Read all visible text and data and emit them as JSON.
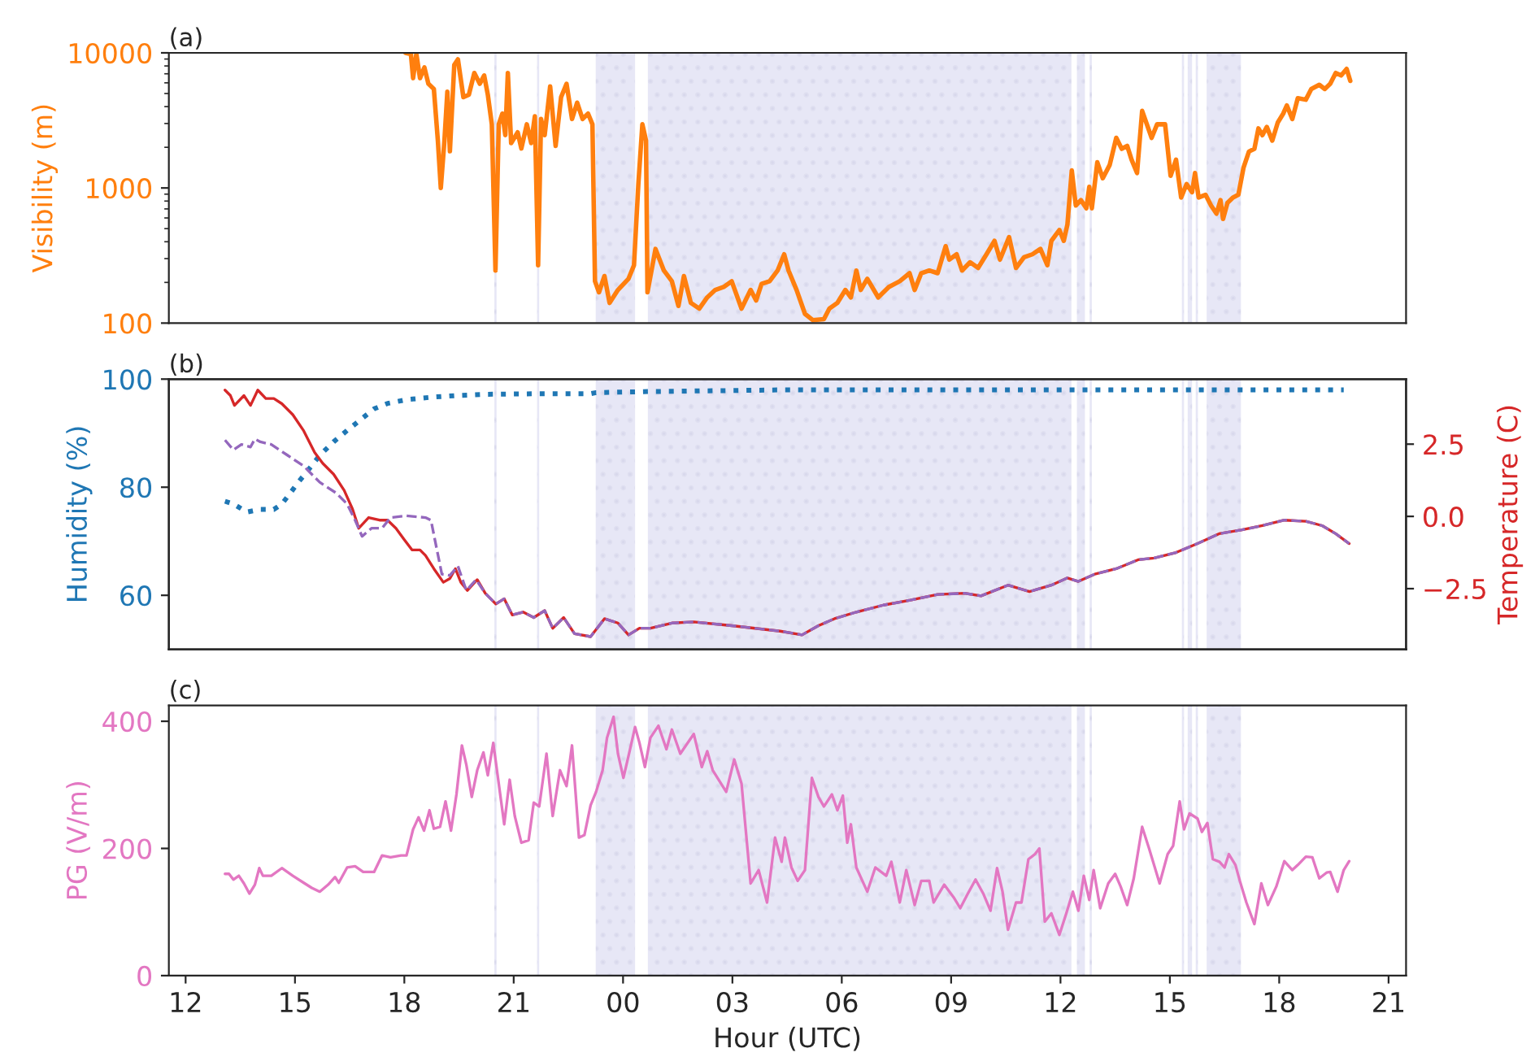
{
  "chart_data": [
    {
      "type": "line",
      "title": "(a)",
      "ylabel": "Visibility (m)",
      "log": "y",
      "ylim": [
        100,
        10000
      ],
      "yticks": [
        100,
        1000,
        10000
      ],
      "xlim": [
        11.54,
        45.48
      ],
      "tick_labels": "y",
      "grid": false,
      "legend": false,
      "bands": [
        {
          "axis": "x",
          "from": 20.47,
          "to": 20.53,
          "color": "#d4d4ee"
        },
        {
          "axis": "x",
          "from": 21.64,
          "to": 21.7,
          "color": "#d4d4ee"
        },
        {
          "axis": "x",
          "from": 23.25,
          "to": 24.33,
          "color": "#d4d4ee"
        },
        {
          "axis": "x",
          "from": 24.68,
          "to": 36.3,
          "color": "#d4d4ee"
        },
        {
          "axis": "x",
          "from": 36.45,
          "to": 36.67,
          "color": "#d4d4ee"
        },
        {
          "axis": "x",
          "from": 36.8,
          "to": 36.86,
          "color": "#d4d4ee"
        },
        {
          "axis": "x",
          "from": 39.33,
          "to": 39.39,
          "color": "#d4d4ee"
        },
        {
          "axis": "x",
          "from": 39.49,
          "to": 39.61,
          "color": "#d4d4ee"
        },
        {
          "axis": "x",
          "from": 39.71,
          "to": 39.77,
          "color": "#d4d4ee"
        },
        {
          "axis": "x",
          "from": 40.01,
          "to": 40.95,
          "color": "#d4d4ee"
        }
      ],
      "series": [
        {
          "color": "#ff7f0e",
          "line_style": "solid",
          "marker": "none",
          "x": [
            18.03,
            18.18,
            18.24,
            18.33,
            18.43,
            18.55,
            18.66,
            18.81,
            18.92,
            19.0,
            19.1,
            19.18,
            19.25,
            19.37,
            19.47,
            19.62,
            19.77,
            19.92,
            20.07,
            20.19,
            20.29,
            20.4,
            20.5,
            20.59,
            20.69,
            20.77,
            20.84,
            20.93,
            21.11,
            21.21,
            21.36,
            21.48,
            21.58,
            21.67,
            21.75,
            21.85,
            22.0,
            22.15,
            22.3,
            22.45,
            22.6,
            22.74,
            22.89,
            23.04,
            23.16,
            23.23,
            23.34,
            23.49,
            23.63,
            23.86,
            24.15,
            24.3,
            24.42,
            24.53,
            24.63,
            24.67,
            24.89,
            25.12,
            25.34,
            25.52,
            25.67,
            25.86,
            26.09,
            26.31,
            26.53,
            26.76,
            26.98,
            27.25,
            27.5,
            27.65,
            27.8,
            28.02,
            28.24,
            28.42,
            28.54,
            28.76,
            28.99,
            29.21,
            29.51,
            29.66,
            29.88,
            30.1,
            30.25,
            30.4,
            30.52,
            30.7,
            31.0,
            31.29,
            31.59,
            31.86,
            32.0,
            32.18,
            32.4,
            32.63,
            32.85,
            32.95,
            33.15,
            33.3,
            33.52,
            33.74,
            33.97,
            34.19,
            34.34,
            34.59,
            34.78,
            35.0,
            35.23,
            35.45,
            35.64,
            35.75,
            35.97,
            36.09,
            36.19,
            36.31,
            36.42,
            36.56,
            36.71,
            36.79,
            36.86,
            37.01,
            37.16,
            37.35,
            37.53,
            37.68,
            37.83,
            37.95,
            38.1,
            38.24,
            38.5,
            38.65,
            38.87,
            39.02,
            39.17,
            39.31,
            39.46,
            39.61,
            39.69,
            39.79,
            39.98,
            40.13,
            40.28,
            40.39,
            40.46,
            40.58,
            40.73,
            40.88,
            41.02,
            41.17,
            41.32,
            41.43,
            41.54,
            41.66,
            41.81,
            41.96,
            42.11,
            42.21,
            42.36,
            42.51,
            42.73,
            42.88,
            43.1,
            43.25,
            43.4,
            43.55,
            43.7,
            43.85,
            43.95
          ],
          "values": [
            10000,
            9800,
            6500,
            9800,
            6500,
            7800,
            5900,
            5400,
            2240,
            1000,
            2240,
            5150,
            1870,
            8160,
            8950,
            4700,
            4900,
            7100,
            5900,
            6800,
            4900,
            2960,
            245,
            2960,
            3550,
            2460,
            7100,
            2150,
            2580,
            1960,
            2960,
            2150,
            3390,
            268,
            3240,
            2460,
            5650,
            2050,
            4700,
            5900,
            3240,
            4280,
            3240,
            3550,
            2960,
            204,
            169,
            223,
            141,
            176,
            213,
            268,
            1070,
            2960,
            2240,
            169,
            354,
            245,
            204,
            134,
            223,
            141,
            128,
            155,
            176,
            185,
            204,
            128,
            176,
            147,
            195,
            204,
            245,
            323,
            245,
            176,
            117,
            105,
            107,
            128,
            141,
            176,
            155,
            245,
            176,
            213,
            155,
            185,
            204,
            234,
            176,
            234,
            245,
            234,
            371,
            295,
            323,
            245,
            282,
            256,
            323,
            406,
            295,
            433,
            256,
            307,
            323,
            354,
            268,
            406,
            489,
            406,
            536,
            1350,
            742,
            813,
            707,
            1020,
            707,
            1550,
            1180,
            1480,
            2350,
            1950,
            2050,
            1620,
            1290,
            3720,
            2350,
            2960,
            2960,
            1230,
            1620,
            850,
            1070,
            930,
            1290,
            850,
            890,
            742,
            645,
            813,
            590,
            775,
            850,
            890,
            1410,
            1860,
            1950,
            2760,
            2460,
            2830,
            2240,
            3050,
            3550,
            4080,
            3240,
            4620,
            4500,
            5400,
            5800,
            5400,
            5900,
            7100,
            6800,
            7600,
            6200
          ]
        }
      ]
    },
    {
      "type": "line",
      "title": "(b)",
      "ylabel": "Humidity (%)",
      "y2label": "Temperature (C)",
      "ylim": [
        50,
        100
      ],
      "yticks": [
        60,
        80,
        100
      ],
      "y2lim": [
        -4.6,
        4.75
      ],
      "y2ticks": [
        {
          "value": -2.5,
          "label": "−2.5"
        },
        {
          "value": 0,
          "label": "0.0"
        },
        {
          "value": 2.5,
          "label": "2.5"
        }
      ],
      "xlim": [
        11.54,
        45.48
      ],
      "tick_labels": "y",
      "grid": false,
      "legend": false,
      "bands": [
        {
          "axis": "x",
          "from": 20.47,
          "to": 20.53,
          "color": "#d4d4ee"
        },
        {
          "axis": "x",
          "from": 21.64,
          "to": 21.7,
          "color": "#d4d4ee"
        },
        {
          "axis": "x",
          "from": 23.25,
          "to": 24.33,
          "color": "#d4d4ee"
        },
        {
          "axis": "x",
          "from": 24.68,
          "to": 36.3,
          "color": "#d4d4ee"
        },
        {
          "axis": "x",
          "from": 36.45,
          "to": 36.67,
          "color": "#d4d4ee"
        },
        {
          "axis": "x",
          "from": 36.8,
          "to": 36.86,
          "color": "#d4d4ee"
        },
        {
          "axis": "x",
          "from": 39.33,
          "to": 39.39,
          "color": "#d4d4ee"
        },
        {
          "axis": "x",
          "from": 39.49,
          "to": 39.61,
          "color": "#d4d4ee"
        },
        {
          "axis": "x",
          "from": 39.71,
          "to": 39.77,
          "color": "#d4d4ee"
        },
        {
          "axis": "x",
          "from": 40.01,
          "to": 40.95,
          "color": "#d4d4ee"
        }
      ],
      "series": [
        {
          "color": "#1f77b4",
          "axis": "y",
          "line_style": "dotted",
          "marker": "none",
          "x": [
            13.08,
            13.31,
            13.68,
            14.05,
            14.42,
            14.64,
            14.87,
            15.09,
            15.39,
            15.68,
            16.06,
            16.43,
            16.8,
            17.17,
            17.54,
            18.06,
            18.81,
            19.55,
            20.29,
            21.78,
            23.11,
            23.26,
            24.75,
            28.3,
            43.77
          ],
          "values": [
            77.4,
            76.9,
            75.4,
            75.9,
            75.9,
            76.9,
            78.9,
            80.9,
            83.4,
            85.9,
            88.4,
            90.5,
            92.5,
            94.5,
            95.5,
            96.2,
            96.7,
            97.0,
            97.2,
            97.3,
            97.3,
            97.5,
            97.7,
            98.0,
            98.0
          ]
        },
        {
          "color": "#9467bd",
          "axis": "y2",
          "line_style": "dashed",
          "marker": "none",
          "x": [
            13.08,
            13.31,
            13.53,
            13.78,
            13.9,
            14.05,
            14.35,
            14.79,
            15.24,
            15.68,
            16.13,
            16.43,
            16.65,
            16.84,
            17.1,
            17.39,
            17.62,
            18.06,
            18.58,
            18.73,
            18.88,
            19.03,
            19.25,
            19.47,
            19.7,
            19.97,
            20.22,
            20.51,
            20.74,
            20.96,
            21.26,
            21.55,
            21.85,
            22.07,
            22.37,
            22.67,
            23.11,
            23.49,
            23.86,
            24.15,
            24.45,
            24.75,
            25.34,
            25.94,
            26.98,
            28.31,
            28.91,
            29.36,
            29.8,
            30.4,
            31.14,
            31.88,
            32.63,
            33.37,
            33.82,
            34.56,
            35.15,
            35.75,
            36.19,
            36.49,
            36.94,
            37.53,
            38.13,
            38.57,
            39.17,
            39.76,
            40.35,
            40.95,
            41.54,
            42.14,
            42.73,
            43.18,
            43.55,
            43.92
          ],
          "values": [
            2.64,
            2.3,
            2.49,
            2.4,
            2.68,
            2.58,
            2.49,
            2.12,
            1.74,
            1.18,
            0.81,
            0.43,
            -0.13,
            -0.69,
            -0.41,
            -0.41,
            -0.04,
            0.02,
            -0.04,
            -0.13,
            -1.07,
            -2.0,
            -2.04,
            -1.72,
            -2.56,
            -2.19,
            -2.66,
            -3.03,
            -2.85,
            -3.41,
            -3.31,
            -3.5,
            -3.26,
            -3.87,
            -3.5,
            -4.06,
            -4.16,
            -3.54,
            -3.69,
            -4.1,
            -3.87,
            -3.87,
            -3.69,
            -3.65,
            -3.78,
            -3.97,
            -4.1,
            -3.78,
            -3.54,
            -3.31,
            -3.07,
            -2.9,
            -2.7,
            -2.66,
            -2.75,
            -2.38,
            -2.6,
            -2.38,
            -2.13,
            -2.25,
            -2.0,
            -1.81,
            -1.5,
            -1.44,
            -1.25,
            -0.94,
            -0.6,
            -0.47,
            -0.32,
            -0.13,
            -0.17,
            -0.32,
            -0.6,
            -0.94
          ]
        },
        {
          "color": "#d62728",
          "axis": "y2",
          "line_style": "solid",
          "marker": "none",
          "x": [
            13.08,
            13.23,
            13.34,
            13.6,
            13.78,
            13.98,
            14.2,
            14.42,
            14.64,
            14.94,
            15.24,
            15.54,
            15.76,
            16.06,
            16.35,
            16.58,
            16.75,
            17.02,
            17.32,
            17.54,
            17.77,
            17.99,
            18.21,
            18.43,
            18.58,
            18.81,
            19.07,
            19.25,
            19.4,
            19.55,
            19.73,
            20.0,
            20.22,
            20.51,
            20.74,
            20.96,
            21.26,
            21.55,
            21.85,
            22.07,
            22.37,
            22.67,
            23.11,
            23.49,
            23.86,
            24.15,
            24.45,
            24.75,
            25.34,
            25.94,
            26.98,
            28.31,
            28.91,
            29.36,
            29.8,
            30.4,
            31.14,
            31.88,
            32.63,
            33.37,
            33.82,
            34.56,
            35.15,
            35.75,
            36.19,
            36.49,
            36.94,
            37.53,
            38.13,
            38.57,
            39.17,
            39.76,
            40.35,
            40.95,
            41.54,
            42.14,
            42.73,
            43.18,
            43.55,
            43.92
          ],
          "values": [
            4.37,
            4.18,
            3.84,
            4.18,
            3.84,
            4.37,
            4.08,
            4.08,
            3.9,
            3.52,
            2.96,
            2.21,
            1.84,
            1.46,
            0.9,
            0.25,
            -0.41,
            -0.04,
            -0.13,
            -0.13,
            -0.41,
            -0.79,
            -1.16,
            -1.16,
            -1.35,
            -1.81,
            -2.28,
            -2.15,
            -1.81,
            -2.28,
            -2.56,
            -2.19,
            -2.66,
            -3.03,
            -2.85,
            -3.41,
            -3.31,
            -3.5,
            -3.26,
            -3.87,
            -3.5,
            -4.06,
            -4.16,
            -3.54,
            -3.69,
            -4.1,
            -3.87,
            -3.87,
            -3.69,
            -3.65,
            -3.78,
            -3.97,
            -4.1,
            -3.78,
            -3.54,
            -3.31,
            -3.07,
            -2.9,
            -2.7,
            -2.66,
            -2.75,
            -2.38,
            -2.6,
            -2.38,
            -2.13,
            -2.25,
            -2.0,
            -1.81,
            -1.5,
            -1.44,
            -1.25,
            -0.94,
            -0.6,
            -0.47,
            -0.32,
            -0.13,
            -0.17,
            -0.32,
            -0.6,
            -0.94
          ]
        }
      ]
    },
    {
      "type": "line",
      "title": "(c)",
      "xlabel": "Hour (UTC)",
      "ylabel": "PG (V/m)",
      "ylim": [
        0,
        425
      ],
      "yticks": [
        0,
        200,
        400
      ],
      "xlim": [
        11.54,
        45.48
      ],
      "xticks": [
        {
          "value": 12,
          "label": "12"
        },
        {
          "value": 15,
          "label": "15"
        },
        {
          "value": 18,
          "label": "18"
        },
        {
          "value": 21,
          "label": "21"
        },
        {
          "value": 24,
          "label": "00"
        },
        {
          "value": 27,
          "label": "03"
        },
        {
          "value": 30,
          "label": "06"
        },
        {
          "value": 33,
          "label": "09"
        },
        {
          "value": 36,
          "label": "12"
        },
        {
          "value": 39,
          "label": "15"
        },
        {
          "value": 42,
          "label": "18"
        },
        {
          "value": 45,
          "label": "21"
        }
      ],
      "grid": false,
      "legend": false,
      "bands": [
        {
          "axis": "x",
          "from": 20.47,
          "to": 20.53,
          "color": "#d4d4ee"
        },
        {
          "axis": "x",
          "from": 21.64,
          "to": 21.7,
          "color": "#d4d4ee"
        },
        {
          "axis": "x",
          "from": 23.25,
          "to": 24.33,
          "color": "#d4d4ee"
        },
        {
          "axis": "x",
          "from": 24.68,
          "to": 36.3,
          "color": "#d4d4ee"
        },
        {
          "axis": "x",
          "from": 36.45,
          "to": 36.67,
          "color": "#d4d4ee"
        },
        {
          "axis": "x",
          "from": 36.8,
          "to": 36.86,
          "color": "#d4d4ee"
        },
        {
          "axis": "x",
          "from": 39.33,
          "to": 39.39,
          "color": "#d4d4ee"
        },
        {
          "axis": "x",
          "from": 39.49,
          "to": 39.61,
          "color": "#d4d4ee"
        },
        {
          "axis": "x",
          "from": 39.71,
          "to": 39.77,
          "color": "#d4d4ee"
        },
        {
          "axis": "x",
          "from": 40.01,
          "to": 40.95,
          "color": "#d4d4ee"
        }
      ],
      "series": [
        {
          "color": "#e377c2",
          "line_style": "solid",
          "marker": "none",
          "x": [
            13.08,
            13.19,
            13.31,
            13.46,
            13.6,
            13.75,
            13.9,
            14.02,
            14.12,
            14.35,
            14.64,
            14.94,
            15.24,
            15.46,
            15.68,
            15.91,
            16.1,
            16.2,
            16.43,
            16.65,
            16.87,
            17.17,
            17.39,
            17.62,
            17.91,
            18.06,
            18.24,
            18.39,
            18.54,
            18.69,
            18.81,
            18.98,
            19.13,
            19.28,
            19.43,
            19.58,
            19.7,
            19.85,
            20.0,
            20.17,
            20.29,
            20.44,
            20.59,
            20.74,
            20.89,
            21.03,
            21.21,
            21.41,
            21.55,
            21.7,
            21.9,
            22.07,
            22.27,
            22.45,
            22.6,
            22.79,
            22.94,
            23.11,
            23.26,
            23.44,
            23.56,
            23.74,
            23.86,
            24.01,
            24.18,
            24.33,
            24.45,
            24.6,
            24.75,
            24.97,
            25.19,
            25.34,
            25.57,
            25.94,
            26.16,
            26.31,
            26.46,
            26.83,
            27.05,
            27.25,
            27.5,
            27.72,
            27.95,
            28.17,
            28.35,
            28.44,
            28.62,
            28.79,
            28.99,
            29.18,
            29.36,
            29.51,
            29.73,
            29.88,
            30.03,
            30.15,
            30.25,
            30.4,
            30.7,
            30.92,
            31.22,
            31.36,
            31.59,
            31.77,
            32.0,
            32.18,
            32.4,
            32.52,
            32.81,
            33.07,
            33.25,
            33.45,
            33.67,
            33.89,
            34.08,
            34.26,
            34.41,
            34.56,
            34.78,
            34.93,
            35.12,
            35.3,
            35.42,
            35.57,
            35.75,
            35.97,
            36.16,
            36.34,
            36.49,
            36.64,
            36.79,
            36.91,
            37.09,
            37.31,
            37.5,
            37.65,
            37.83,
            38.01,
            38.24,
            38.43,
            38.72,
            38.94,
            39.09,
            39.27,
            39.39,
            39.54,
            39.76,
            39.88,
            40.03,
            40.18,
            40.36,
            40.5,
            40.62,
            40.8,
            40.92,
            41.1,
            41.32,
            41.51,
            41.69,
            41.92,
            42.14,
            42.36,
            42.51,
            42.73,
            42.91,
            43.1,
            43.3,
            43.4,
            43.6,
            43.77,
            43.92
          ],
          "values": [
            160,
            160,
            151,
            157,
            145,
            129,
            143,
            169,
            157,
            157,
            169,
            157,
            146,
            138,
            132,
            143,
            155,
            146,
            170,
            172,
            163,
            163,
            189,
            186,
            189,
            189,
            230,
            249,
            228,
            260,
            231,
            234,
            274,
            228,
            285,
            362,
            332,
            281,
            323,
            351,
            315,
            366,
            302,
            238,
            308,
            251,
            209,
            213,
            272,
            266,
            349,
            251,
            323,
            298,
            362,
            217,
            221,
            268,
            289,
            323,
            374,
            407,
            349,
            311,
            353,
            391,
            366,
            328,
            374,
            393,
            356,
            387,
            349,
            380,
            328,
            353,
            323,
            289,
            340,
            302,
            145,
            166,
            115,
            217,
            179,
            217,
            170,
            149,
            166,
            311,
            281,
            266,
            285,
            260,
            283,
            209,
            238,
            170,
            132,
            170,
            157,
            179,
            115,
            166,
            111,
            149,
            149,
            115,
            143,
            123,
            106,
            128,
            151,
            128,
            102,
            169,
            132,
            72,
            115,
            115,
            183,
            191,
            200,
            85,
            98,
            64,
            98,
            132,
            102,
            157,
            119,
            166,
            106,
            145,
            160,
            140,
            111,
            153,
            234,
            200,
            145,
            191,
            204,
            274,
            230,
            255,
            247,
            226,
            240,
            183,
            179,
            170,
            191,
            174,
            149,
            115,
            81,
            145,
            111,
            140,
            180,
            166,
            174,
            187,
            186,
            153,
            162,
            163,
            132,
            166,
            180
          ]
        }
      ]
    }
  ]
}
